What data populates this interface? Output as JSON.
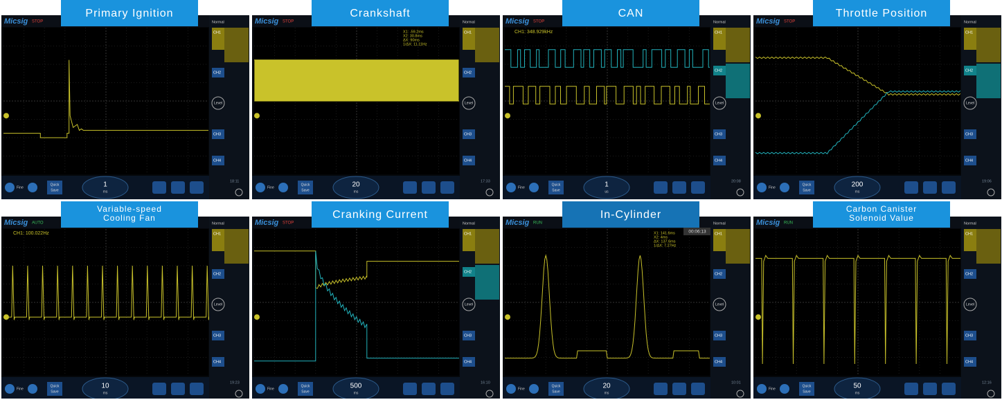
{
  "labels": {
    "brand": "Micsig",
    "mode": "Normal",
    "ch1": "CH1",
    "ch2": "CH2",
    "ch3": "CH3",
    "ch4": "CH4",
    "level": "Level",
    "fine": "Fine",
    "quick": "Quick",
    "save": "Save"
  },
  "panels": [
    {
      "title": [
        "Primary Ignition"
      ],
      "status": "STOP",
      "timebase": "1",
      "unit": "ms",
      "clock": "18:11",
      "readouts": []
    },
    {
      "title": [
        "Crankshaft"
      ],
      "status": "STOP",
      "timebase": "20",
      "unit": "ms",
      "clock": "17:33",
      "readouts": [
        "X1: -59.2ms",
        "X2: 30.8ms",
        "ΔX: 90ms",
        "1/ΔX: 11.11Hz"
      ]
    },
    {
      "title": [
        "CAN"
      ],
      "status": "STOP",
      "timebase": "1",
      "unit": "us",
      "clock": "20:08",
      "readouts": [
        "CH1: 348.929kHz"
      ]
    },
    {
      "title": [
        "Throttle Position"
      ],
      "status": "STOP",
      "timebase": "200",
      "unit": "ms",
      "clock": "19:06",
      "readouts": []
    },
    {
      "title": [
        "Variable-speed",
        "Cooling Fan"
      ],
      "status": "AUTO",
      "timebase": "10",
      "unit": "ms",
      "clock": "19:23",
      "readouts": [
        "CH1: 100.022Hz"
      ]
    },
    {
      "title": [
        "Cranking Current"
      ],
      "status": "STOP",
      "timebase": "500",
      "unit": "ms",
      "clock": "16:10",
      "readouts": []
    },
    {
      "title": [
        "In-Cylinder"
      ],
      "status": "RUN",
      "timebase": "20",
      "unit": "ms",
      "clock": "10:01",
      "readouts": [
        "X1: 141.6ms",
        "X2: 4ms",
        "ΔX: 137.6ms",
        "1/ΔX: 7.27Hz"
      ],
      "timer": "00:06:13"
    },
    {
      "title": [
        "Carbon Canister",
        "Solenoid Value"
      ],
      "status": "RUN",
      "timebase": "50",
      "unit": "ms",
      "clock": "12:16",
      "readouts": []
    }
  ]
}
